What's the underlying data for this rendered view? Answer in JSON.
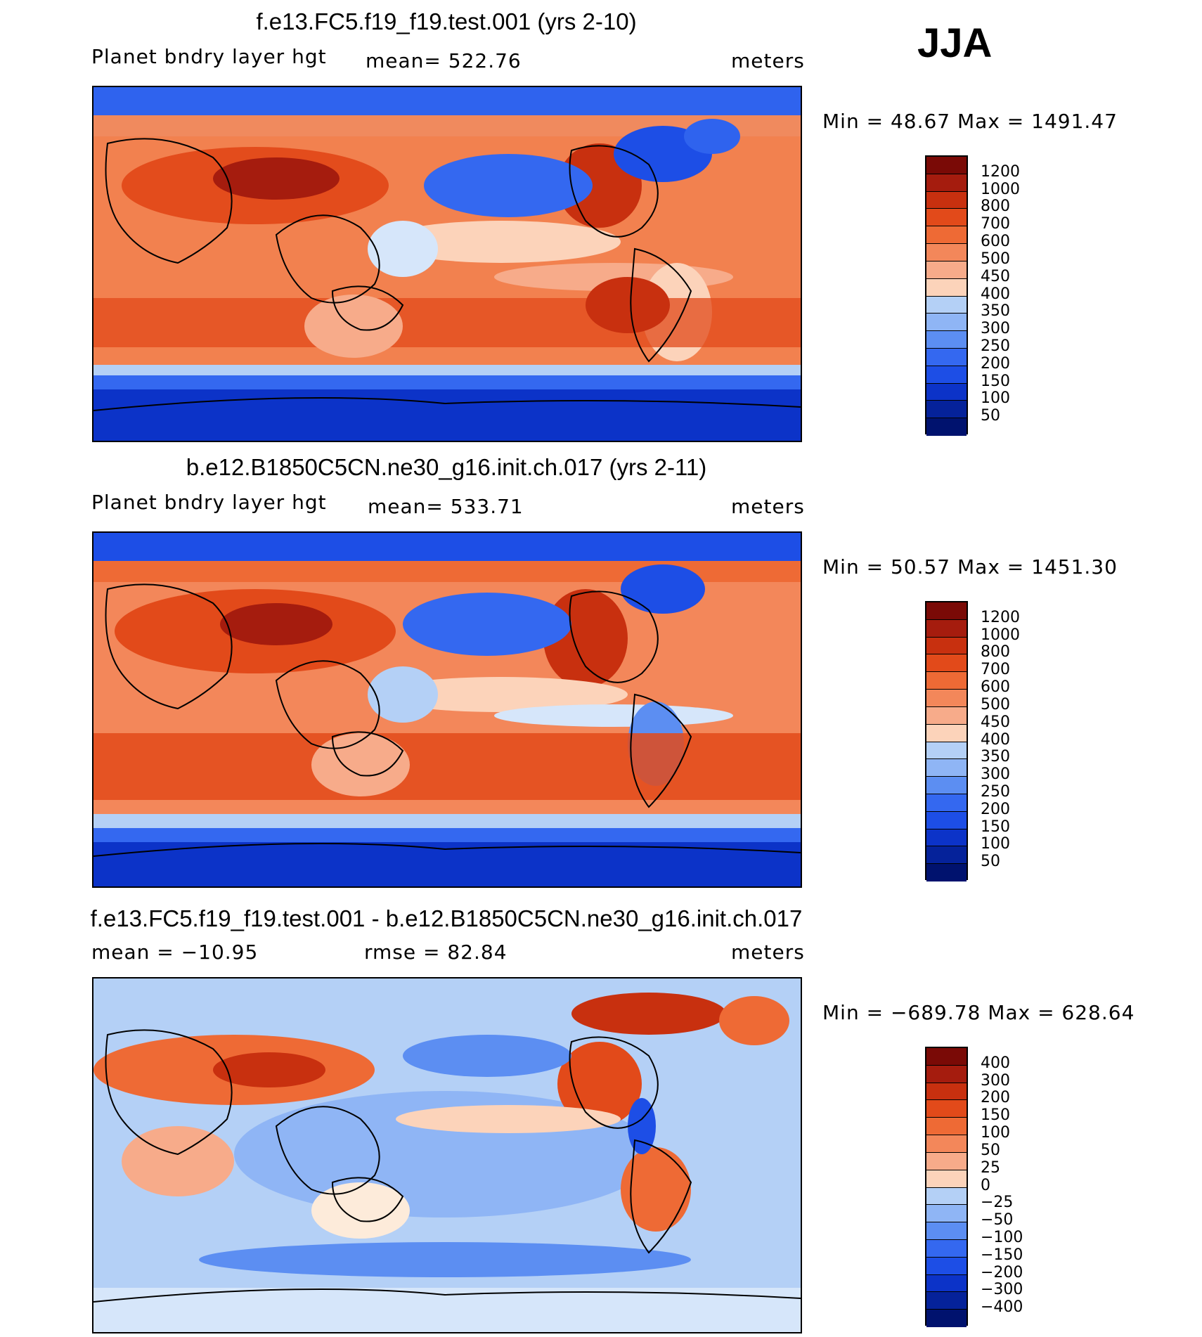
{
  "season": "JJA",
  "panels": [
    {
      "title": "f.e13.FC5.f19_f19.test.001 (yrs 2-10)",
      "variable": "Planet bndry layer hgt",
      "stat": "mean= 522.76",
      "units": "meters",
      "minmax": "Min =   48.67 Max = 1491.47",
      "colorbar_labels": [
        "1200",
        "1000",
        "800",
        "700",
        "600",
        "500",
        "450",
        "400",
        "350",
        "300",
        "250",
        "200",
        "150",
        "100",
        "50"
      ]
    },
    {
      "title": "b.e12.B1850C5CN.ne30_g16.init.ch.017 (yrs 2-11)",
      "variable": "Planet bndry layer hgt",
      "stat": "mean= 533.71",
      "units": "meters",
      "minmax": "Min =   50.57 Max = 1451.30",
      "colorbar_labels": [
        "1200",
        "1000",
        "800",
        "700",
        "600",
        "500",
        "450",
        "400",
        "350",
        "300",
        "250",
        "200",
        "150",
        "100",
        "50"
      ]
    },
    {
      "title": "f.e13.FC5.f19_f19.test.001 - b.e12.B1850C5CN.ne30_g16.init.ch.017",
      "variable": "mean = −10.95",
      "stat": "rmse =   82.84",
      "units": "meters",
      "minmax": "Min = −689.78 Max = 628.64",
      "colorbar_labels": [
        "400",
        "300",
        "200",
        "150",
        "100",
        "50",
        "25",
        "0",
        "−25",
        "−50",
        "−100",
        "−150",
        "−200",
        "−300",
        "−400"
      ]
    }
  ],
  "colors": {
    "absolute_scale": [
      "#7a0a06",
      "#a51c0e",
      "#c8300f",
      "#e24a1a",
      "#ee6a35",
      "#f3875a",
      "#f7ab8a",
      "#fcd3ba",
      "#fdebda",
      "#d6e6fa",
      "#b4d0f6",
      "#8fb5f5",
      "#5c8ef2",
      "#3468f0",
      "#1d4ee6",
      "#0c33c8",
      "#05229a",
      "#00126e"
    ],
    "difference_scale": [
      "#7a0a06",
      "#a51c0e",
      "#c8300f",
      "#e24a1a",
      "#ee6a35",
      "#f3875a",
      "#f7ab8a",
      "#fcd3ba",
      "#fdebda",
      "#d6e6fa",
      "#b4d0f6",
      "#8fb5f5",
      "#5c8ef2",
      "#3468f0",
      "#1d4ee6",
      "#0c33c8",
      "#05229a",
      "#00126e"
    ]
  },
  "chart_data": [
    {
      "type": "heatmap",
      "title": "f.e13.FC5.f19_f19.test.001 (yrs 2-10)",
      "variable": "Planet bndry layer hgt",
      "units": "meters",
      "mean": 522.76,
      "min": 48.67,
      "max": 1491.47,
      "levels": [
        50,
        100,
        150,
        200,
        250,
        300,
        350,
        400,
        450,
        500,
        600,
        700,
        800,
        1000,
        1200
      ]
    },
    {
      "type": "heatmap",
      "title": "b.e12.B1850C5CN.ne30_g16.init.ch.017 (yrs 2-11)",
      "variable": "Planet bndry layer hgt",
      "units": "meters",
      "mean": 533.71,
      "min": 50.57,
      "max": 1451.3,
      "levels": [
        50,
        100,
        150,
        200,
        250,
        300,
        350,
        400,
        450,
        500,
        600,
        700,
        800,
        1000,
        1200
      ]
    },
    {
      "type": "heatmap",
      "title": "f.e13.FC5.f19_f19.test.001 - b.e12.B1850C5CN.ne30_g16.init.ch.017",
      "units": "meters",
      "mean": -10.95,
      "rmse": 82.84,
      "min": -689.78,
      "max": 628.64,
      "levels": [
        -400,
        -300,
        -200,
        -150,
        -100,
        -50,
        -25,
        0,
        25,
        50,
        100,
        150,
        200,
        300,
        400
      ]
    }
  ]
}
